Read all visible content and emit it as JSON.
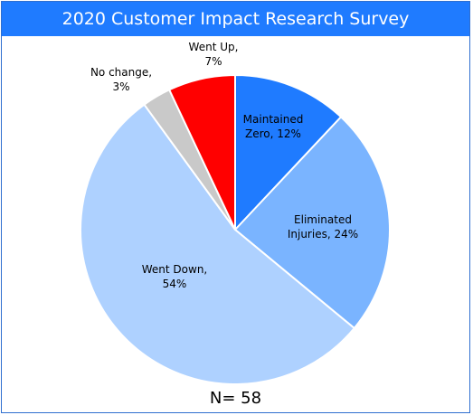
{
  "title": "2020 Customer Impact Research Survey",
  "footer": "N= 58",
  "colors": {
    "title_bar": "#1f7bff",
    "border": "#2f6fd0"
  },
  "chart_data": {
    "type": "pie",
    "title": "2020 Customer Impact Research Survey",
    "slices": [
      {
        "name": "Maintained Zero",
        "value": 12,
        "label_lines": [
          "Maintained",
          "Zero, 12%"
        ],
        "color": "#1f7bff"
      },
      {
        "name": "Eliminated Injuries",
        "value": 24,
        "label_lines": [
          "Eliminated",
          "Injuries, 24%"
        ],
        "color": "#7ab4ff"
      },
      {
        "name": "Went Down",
        "value": 54,
        "label_lines": [
          "Went Down,",
          "54%"
        ],
        "color": "#aed1ff"
      },
      {
        "name": "No change",
        "value": 3,
        "label_lines": [
          "No change,",
          "3%"
        ],
        "color": "#c9c9c9"
      },
      {
        "name": "Went Up",
        "value": 7,
        "label_lines": [
          "Went Up,",
          "7%"
        ],
        "color": "#ff0000"
      }
    ]
  }
}
